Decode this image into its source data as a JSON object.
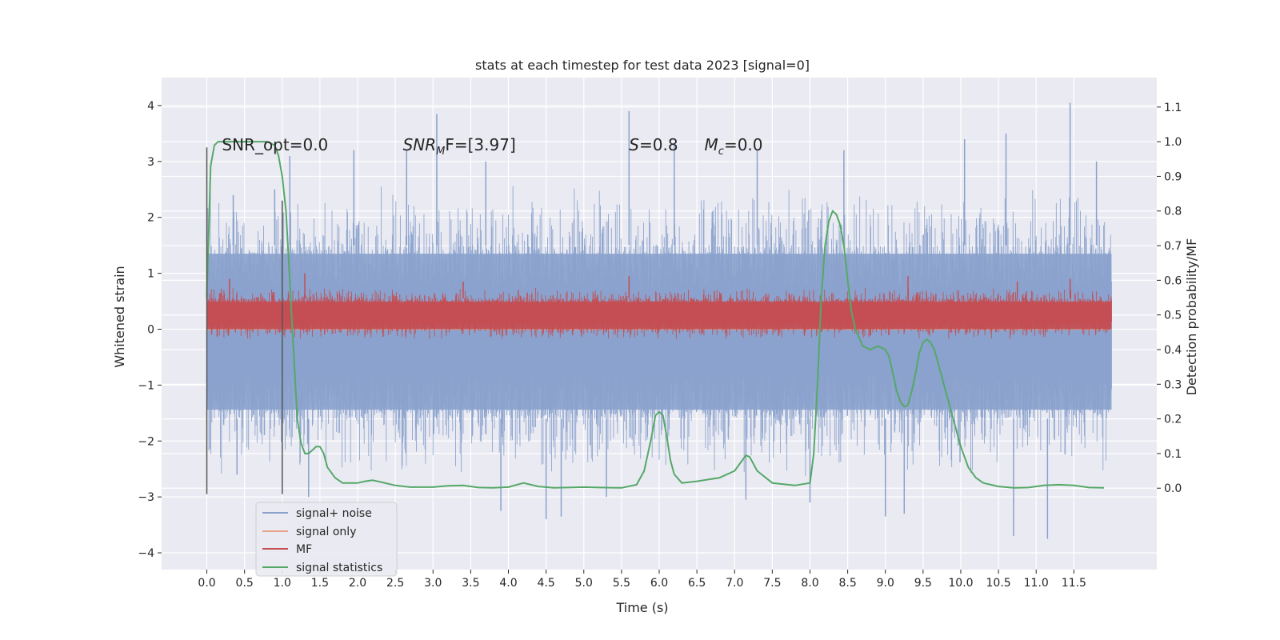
{
  "chart_data": {
    "type": "line",
    "title": "stats at each timestep for test data 2023 [signal=0]",
    "xlabel": "Time (s)",
    "ylabel_left": "Whitened strain",
    "ylabel_right": "Detection probability/MF",
    "xlim": [
      -0.6,
      12.6
    ],
    "ylim_left": [
      -4.3,
      4.5
    ],
    "ylim_right": [
      -0.235,
      1.185
    ],
    "xticks": [
      0.0,
      0.5,
      1.0,
      1.5,
      2.0,
      2.5,
      3.0,
      3.5,
      4.0,
      4.5,
      5.0,
      5.5,
      6.0,
      6.5,
      7.0,
      7.5,
      8.0,
      8.5,
      9.0,
      9.5,
      10.0,
      10.5,
      11.0,
      11.5
    ],
    "xtick_labels": [
      "0.0",
      "0.5",
      "1.0",
      "1.5",
      "2.0",
      "2.5",
      "3.0",
      "3.5",
      "4.0",
      "4.5",
      "5.0",
      "5.5",
      "6.0",
      "6.5",
      "7.0",
      "7.5",
      "8.0",
      "8.5",
      "9.0",
      "9.5",
      "10.0",
      "10.5",
      "11.0",
      "11.5"
    ],
    "yticks_left": [
      4,
      3,
      2,
      1,
      0,
      -1,
      -2,
      -3,
      -4
    ],
    "ytick_labels_left": [
      "4",
      "3",
      "2",
      "1",
      "0",
      "−1",
      "−2",
      "−3",
      "−4"
    ],
    "yticks_right": [
      1.1,
      1.0,
      0.9,
      0.8,
      0.7,
      0.6,
      0.5,
      0.4,
      0.3,
      0.2,
      0.1,
      0.0
    ],
    "ytick_labels_right": [
      "1.1",
      "1.0",
      "0.9",
      "0.8",
      "0.7",
      "0.6",
      "0.5",
      "0.4",
      "0.3",
      "0.2",
      "0.1",
      "0.0"
    ],
    "grid": true,
    "legend_position": "lower-left",
    "colors": {
      "signal_noise": "#8aa2cc",
      "signal_only": "#e8a488",
      "mf": "#c44e52",
      "signal_statistics": "#55a868",
      "marker": "#555555",
      "axes_bg": "#eaeaf2"
    },
    "series": [
      {
        "name": "signal+ noise",
        "axis": "left",
        "style": "noise-band",
        "x_range": [
          0.0,
          12.0
        ],
        "band_lower": -1.6,
        "band_upper": 1.5,
        "spikes_up": [
          [
            0.35,
            2.4
          ],
          [
            0.9,
            2.5
          ],
          [
            1.1,
            3.1
          ],
          [
            1.95,
            3.2
          ],
          [
            2.65,
            3.2
          ],
          [
            3.05,
            3.85
          ],
          [
            3.7,
            3.0
          ],
          [
            5.6,
            3.9
          ],
          [
            6.2,
            3.3
          ],
          [
            7.3,
            3.2
          ],
          [
            8.45,
            3.2
          ],
          [
            10.05,
            3.4
          ],
          [
            10.6,
            3.5
          ],
          [
            11.45,
            4.05
          ],
          [
            11.8,
            3.0
          ]
        ],
        "spikes_down": [
          [
            0.4,
            -2.6
          ],
          [
            1.35,
            -3.0
          ],
          [
            3.9,
            -3.25
          ],
          [
            4.5,
            -3.4
          ],
          [
            4.7,
            -3.35
          ],
          [
            5.3,
            -3.0
          ],
          [
            7.15,
            -3.05
          ],
          [
            8.0,
            -3.1
          ],
          [
            9.0,
            -3.35
          ],
          [
            9.25,
            -3.3
          ],
          [
            10.7,
            -3.7
          ],
          [
            11.15,
            -3.75
          ]
        ]
      },
      {
        "name": "signal only",
        "axis": "left",
        "x": [
          0.0,
          12.0
        ],
        "y": [
          0.0,
          0.0
        ]
      },
      {
        "name": "MF",
        "axis": "left",
        "style": "noise-band",
        "x_range": [
          0.0,
          12.0
        ],
        "band_lower": 0.0,
        "band_upper": 0.55,
        "spikes_up": [
          [
            0.3,
            0.9
          ],
          [
            1.3,
            1.0
          ],
          [
            3.4,
            0.85
          ],
          [
            5.6,
            0.95
          ],
          [
            9.3,
            0.95
          ],
          [
            10.75,
            0.85
          ],
          [
            11.45,
            0.9
          ]
        ],
        "spikes_down": []
      },
      {
        "name": "signal statistics",
        "axis": "right",
        "x": [
          0.0,
          0.05,
          0.1,
          0.15,
          0.2,
          0.3,
          0.5,
          0.8,
          0.9,
          0.95,
          1.0,
          1.05,
          1.1,
          1.15,
          1.2,
          1.25,
          1.3,
          1.35,
          1.4,
          1.45,
          1.5,
          1.55,
          1.6,
          1.7,
          1.8,
          2.0,
          2.1,
          2.2,
          2.3,
          2.5,
          2.7,
          3.0,
          3.2,
          3.4,
          3.6,
          3.8,
          4.0,
          4.2,
          4.4,
          4.6,
          4.8,
          5.0,
          5.2,
          5.5,
          5.7,
          5.8,
          5.9,
          5.95,
          6.0,
          6.05,
          6.1,
          6.15,
          6.2,
          6.3,
          6.5,
          6.8,
          7.0,
          7.1,
          7.15,
          7.2,
          7.3,
          7.5,
          7.8,
          8.0,
          8.05,
          8.1,
          8.15,
          8.2,
          8.25,
          8.3,
          8.35,
          8.4,
          8.45,
          8.5,
          8.55,
          8.6,
          8.7,
          8.8,
          8.9,
          9.0,
          9.05,
          9.1,
          9.15,
          9.2,
          9.25,
          9.3,
          9.35,
          9.4,
          9.45,
          9.5,
          9.55,
          9.6,
          9.65,
          9.7,
          9.8,
          9.9,
          10.0,
          10.1,
          10.2,
          10.3,
          10.5,
          10.7,
          10.9,
          11.1,
          11.3,
          11.5,
          11.7,
          11.9
        ],
        "y": [
          0.55,
          0.93,
          0.99,
          1.0,
          1.0,
          1.0,
          1.0,
          1.0,
          0.99,
          0.96,
          0.9,
          0.8,
          0.6,
          0.4,
          0.2,
          0.13,
          0.1,
          0.1,
          0.11,
          0.12,
          0.12,
          0.1,
          0.06,
          0.03,
          0.015,
          0.015,
          0.02,
          0.023,
          0.018,
          0.008,
          0.003,
          0.003,
          0.007,
          0.008,
          0.002,
          0.001,
          0.003,
          0.015,
          0.005,
          0.001,
          0.002,
          0.003,
          0.002,
          0.001,
          0.01,
          0.05,
          0.15,
          0.21,
          0.22,
          0.21,
          0.15,
          0.08,
          0.04,
          0.015,
          0.02,
          0.03,
          0.05,
          0.08,
          0.095,
          0.09,
          0.05,
          0.015,
          0.008,
          0.015,
          0.1,
          0.3,
          0.55,
          0.7,
          0.77,
          0.8,
          0.79,
          0.76,
          0.7,
          0.6,
          0.51,
          0.46,
          0.41,
          0.4,
          0.41,
          0.4,
          0.38,
          0.33,
          0.28,
          0.25,
          0.235,
          0.24,
          0.28,
          0.33,
          0.39,
          0.42,
          0.43,
          0.42,
          0.4,
          0.36,
          0.28,
          0.2,
          0.12,
          0.06,
          0.03,
          0.015,
          0.005,
          0.001,
          0.002,
          0.008,
          0.01,
          0.008,
          0.002,
          0.001
        ]
      }
    ],
    "vertical_markers": [
      {
        "x": 0.0,
        "y_top": 3.25,
        "y_bottom": -2.95
      },
      {
        "x": 1.0,
        "y_top": 2.3,
        "y_bottom": -2.95
      }
    ],
    "annotations": [
      {
        "text": "SNR_opt=0.0",
        "x": 0.2,
        "y": 3.2,
        "math": false
      },
      {
        "main": "SNR",
        "sub": "M",
        "rest": "F=[3.97]",
        "x": 2.6,
        "y": 3.2,
        "math": true
      },
      {
        "main": "S",
        "sub": "",
        "rest": "=0.8",
        "x": 5.6,
        "y": 3.2,
        "math": true
      },
      {
        "main": "M",
        "sub": "c",
        "rest": "=0.0",
        "x": 6.6,
        "y": 3.2,
        "math": true
      }
    ]
  }
}
